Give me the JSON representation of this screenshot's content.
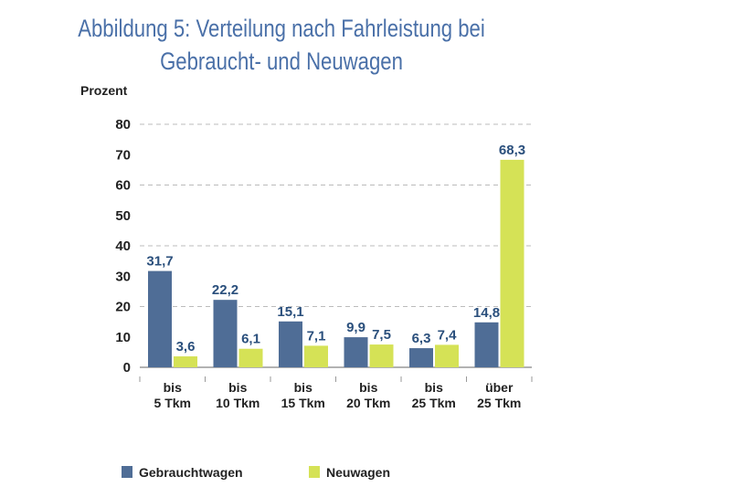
{
  "chart_data": {
    "type": "bar",
    "title": [
      "Abbildung 5: Verteilung nach Fahrleistung bei",
      "Gebraucht- und Neuwagen"
    ],
    "ylabel": "Prozent",
    "xlabel": "",
    "ylim": [
      0,
      80
    ],
    "yticks": [
      "0",
      "10",
      "20",
      "30",
      "40",
      "50",
      "60",
      "70",
      "80"
    ],
    "grid": "dashed at 20, 40, 60, 80",
    "categories": [
      [
        "bis",
        "5 Tkm"
      ],
      [
        "bis",
        "10 Tkm"
      ],
      [
        "bis",
        "15 Tkm"
      ],
      [
        "bis",
        "20 Tkm"
      ],
      [
        "bis",
        "25 Tkm"
      ],
      [
        "über",
        "25 Tkm"
      ]
    ],
    "series": [
      {
        "name": "Gebrauchtwagen",
        "color": "#4f6d96",
        "values": [
          31.7,
          22.2,
          15.1,
          9.9,
          6.3,
          14.8
        ],
        "labels": [
          "31,7",
          "22,2",
          "15,1",
          "9,9",
          "6,3",
          "14,8"
        ]
      },
      {
        "name": "Neuwagen",
        "color": "#d5e256",
        "values": [
          3.6,
          6.1,
          7.1,
          7.5,
          7.4,
          68.3
        ],
        "labels": [
          "3,6",
          "6,1",
          "7,1",
          "7,5",
          "7,4",
          "68,3"
        ]
      }
    ],
    "legend_position": "bottom"
  }
}
